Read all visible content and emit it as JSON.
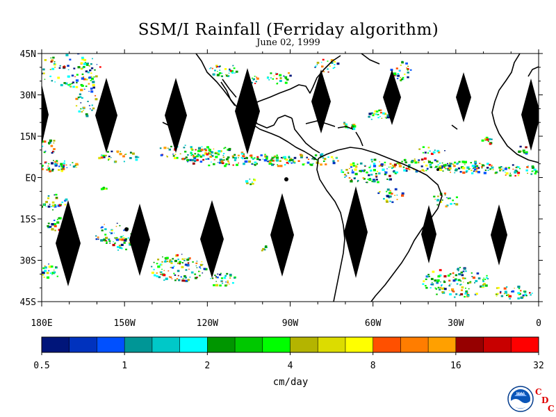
{
  "header": {
    "title": "SSM/I Rainfall (Ferriday algorithm)",
    "date": "June 02, 1999"
  },
  "map": {
    "projection": "equirectangular",
    "lon_range": [
      180,
      360
    ],
    "lat_range": [
      -45,
      45
    ],
    "lat_labels": [
      "45N",
      "30N",
      "15N",
      "EQ",
      "15S",
      "30S",
      "45S"
    ],
    "lon_labels": [
      "180E",
      "150W",
      "120W",
      "90W",
      "60W",
      "30W",
      "0"
    ],
    "swath_gap_color": "#000000",
    "land_outline_color": "#000000"
  },
  "colorbar": {
    "unit": "cm/day",
    "tick_labels": [
      "0.5",
      "1",
      "2",
      "4",
      "8",
      "16",
      "32"
    ],
    "colors": [
      "#00157a",
      "#0032be",
      "#0050ff",
      "#009696",
      "#00c8c8",
      "#00ffff",
      "#009600",
      "#00c800",
      "#00ff00",
      "#b4b400",
      "#dcdc00",
      "#ffff00",
      "#ff5000",
      "#ff7d00",
      "#ffa000",
      "#960000",
      "#c80000",
      "#ff0000"
    ]
  },
  "logo": {
    "noaa_text": "NOAA",
    "cdc_letters": [
      "C",
      "D",
      "C"
    ]
  }
}
